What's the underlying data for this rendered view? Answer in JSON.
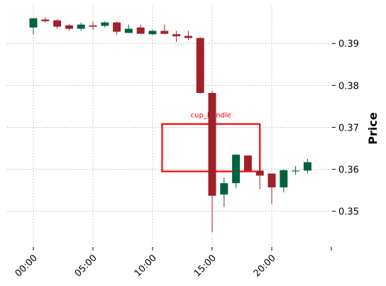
{
  "chart_data": {
    "type": "candlestick",
    "ylabel": "Price",
    "ylim": [
      0.3415,
      0.399
    ],
    "y_ticks": [
      0.35,
      0.36,
      0.37,
      0.38,
      0.39
    ],
    "y_tick_labels": [
      "0.35",
      "0.36",
      "0.37",
      "0.38",
      "0.39"
    ],
    "x_tick_labels": [
      "00:00",
      "05:00",
      "10:00",
      "15:00",
      "20:00"
    ],
    "grid": true,
    "colors": {
      "up": "#006340",
      "down": "#a02128",
      "annotation": "#ff0000"
    },
    "candles": [
      {
        "time": "00:00",
        "open": 0.3938,
        "high": 0.396,
        "low": 0.3922,
        "close": 0.396
      },
      {
        "time": "01:00",
        "open": 0.3957,
        "high": 0.3962,
        "low": 0.395,
        "close": 0.3953
      },
      {
        "time": "02:00",
        "open": 0.3955,
        "high": 0.3958,
        "low": 0.3935,
        "close": 0.394
      },
      {
        "time": "03:00",
        "open": 0.3943,
        "high": 0.3946,
        "low": 0.393,
        "close": 0.3935
      },
      {
        "time": "04:00",
        "open": 0.3935,
        "high": 0.395,
        "low": 0.393,
        "close": 0.3945
      },
      {
        "time": "05:00",
        "open": 0.3943,
        "high": 0.3952,
        "low": 0.3932,
        "close": 0.394
      },
      {
        "time": "06:00",
        "open": 0.3942,
        "high": 0.3953,
        "low": 0.3938,
        "close": 0.395
      },
      {
        "time": "07:00",
        "open": 0.395,
        "high": 0.3952,
        "low": 0.392,
        "close": 0.3928
      },
      {
        "time": "08:00",
        "open": 0.3925,
        "high": 0.3945,
        "low": 0.3925,
        "close": 0.3935
      },
      {
        "time": "09:00",
        "open": 0.3938,
        "high": 0.3945,
        "low": 0.3923,
        "close": 0.3923
      },
      {
        "time": "10:00",
        "open": 0.3922,
        "high": 0.3933,
        "low": 0.392,
        "close": 0.393
      },
      {
        "time": "11:00",
        "open": 0.393,
        "high": 0.3945,
        "low": 0.3922,
        "close": 0.3923
      },
      {
        "time": "12:00",
        "open": 0.3922,
        "high": 0.393,
        "low": 0.3903,
        "close": 0.3917
      },
      {
        "time": "13:00",
        "open": 0.3918,
        "high": 0.393,
        "low": 0.3908,
        "close": 0.3913
      },
      {
        "time": "14:00",
        "open": 0.3913,
        "high": 0.3915,
        "low": 0.378,
        "close": 0.3782
      },
      {
        "time": "15:00",
        "open": 0.3782,
        "high": 0.3788,
        "low": 0.345,
        "close": 0.3537
      },
      {
        "time": "16:00",
        "open": 0.354,
        "high": 0.358,
        "low": 0.351,
        "close": 0.3567
      },
      {
        "time": "17:00",
        "open": 0.3567,
        "high": 0.3635,
        "low": 0.3555,
        "close": 0.3635
      },
      {
        "time": "18:00",
        "open": 0.3633,
        "high": 0.3633,
        "low": 0.3595,
        "close": 0.3597
      },
      {
        "time": "19:00",
        "open": 0.3597,
        "high": 0.3603,
        "low": 0.3553,
        "close": 0.3585
      },
      {
        "time": "20:00",
        "open": 0.359,
        "high": 0.359,
        "low": 0.3517,
        "close": 0.3557
      },
      {
        "time": "21:00",
        "open": 0.3557,
        "high": 0.36,
        "low": 0.3545,
        "close": 0.3598
      },
      {
        "time": "22:00",
        "open": 0.3595,
        "high": 0.3608,
        "low": 0.3587,
        "close": 0.3597
      },
      {
        "time": "23:00",
        "open": 0.3597,
        "high": 0.3625,
        "low": 0.359,
        "close": 0.3617
      }
    ],
    "annotations": [
      {
        "label": "cup_handle",
        "x_start": 10.8,
        "x_end": 19.0,
        "y_low": 0.3595,
        "y_high": 0.3708
      }
    ]
  }
}
